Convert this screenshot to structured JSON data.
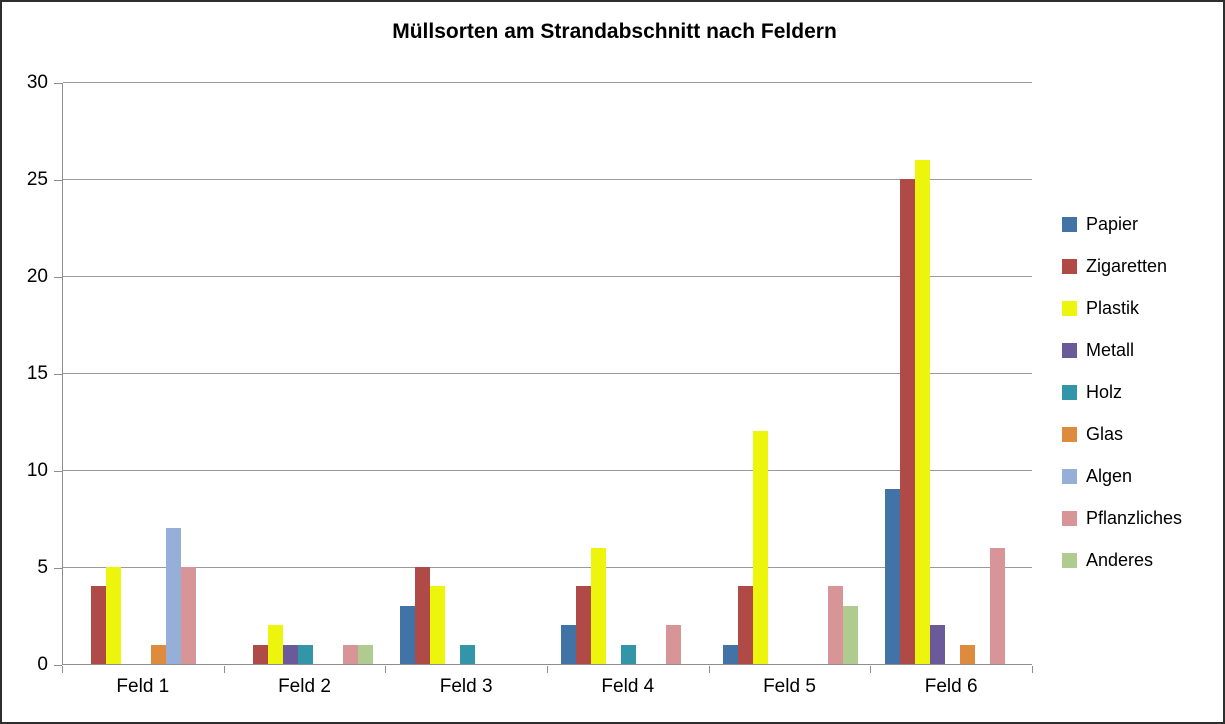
{
  "chart_data": {
    "type": "bar",
    "title": "Müllsorten am Strandabschnitt nach Feldern",
    "categories": [
      "Feld 1",
      "Feld 2",
      "Feld 3",
      "Feld 4",
      "Feld 5",
      "Feld 6"
    ],
    "series": [
      {
        "name": "Papier",
        "color": "#4173A7",
        "values": [
          0,
          0,
          3,
          2,
          1,
          9
        ]
      },
      {
        "name": "Zigaretten",
        "color": "#AF4A47",
        "values": [
          4,
          1,
          5,
          4,
          4,
          25
        ]
      },
      {
        "name": "Plastik",
        "color": "#EDF50C",
        "values": [
          5,
          2,
          4,
          6,
          12,
          26
        ]
      },
      {
        "name": "Metall",
        "color": "#6B5A9A",
        "values": [
          0,
          1,
          0,
          0,
          0,
          2
        ]
      },
      {
        "name": "Holz",
        "color": "#3295A8",
        "values": [
          0,
          1,
          1,
          1,
          0,
          0
        ]
      },
      {
        "name": "Glas",
        "color": "#DF8B3E",
        "values": [
          1,
          0,
          0,
          0,
          0,
          1
        ]
      },
      {
        "name": "Algen",
        "color": "#95AFD8",
        "values": [
          7,
          0,
          0,
          0,
          0,
          0
        ]
      },
      {
        "name": "Pflanzliches",
        "color": "#D79598",
        "values": [
          5,
          1,
          0,
          2,
          4,
          6
        ]
      },
      {
        "name": "Anderes",
        "color": "#B0CB8F",
        "values": [
          0,
          1,
          0,
          0,
          3,
          0
        ]
      }
    ],
    "y_ticks": [
      0,
      5,
      10,
      15,
      20,
      25,
      30
    ],
    "ylim": [
      0,
      30
    ],
    "grid": true,
    "legend_position": "right",
    "xlabel": "",
    "ylabel": ""
  },
  "colors": {
    "grid": "#9A9A9A",
    "axis": "#8E8E8E",
    "text": "#000000",
    "frame_border": "#2E2E2E",
    "background": "#FFFFFF"
  }
}
